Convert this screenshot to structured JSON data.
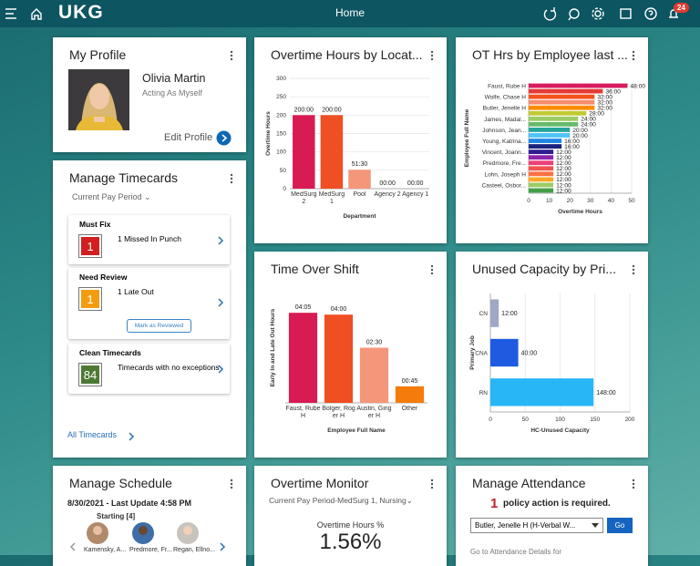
{
  "header": {
    "logo": "UKG",
    "title": "Home",
    "notifications": 24
  },
  "my_profile": {
    "title": "My Profile",
    "name": "Olivia Martin",
    "subtitle": "Acting As Myself",
    "link": "Edit Profile"
  },
  "manage_timecards": {
    "title": "Manage Timecards",
    "period": "Current Pay Period",
    "must_fix": {
      "label": "Must Fix",
      "count": 1,
      "text": "1 Missed In Punch"
    },
    "need_review": {
      "label": "Need Review",
      "count": 1,
      "text": "1 Late Out",
      "button": "Mark as Reviewed"
    },
    "clean": {
      "label": "Clean Timecards",
      "count": 84,
      "text": "Timecards with no exceptions"
    },
    "link": "All Timecards"
  },
  "overtime_by_location": {
    "type": "bar",
    "title": "Overtime Hours by Locat...",
    "categories": [
      "MedSurg 2",
      "MedSurg 1",
      "Pool",
      "Agency 2",
      "Agency 1"
    ],
    "values": [
      200,
      200,
      51.5,
      0,
      0
    ],
    "value_labels": [
      "200:00",
      "200:00",
      "51:30",
      "00:00",
      "00:00"
    ],
    "colors": [
      "#d81b52",
      "#f04e23",
      "#f4967a",
      "#f7a04a",
      "#f7a04a"
    ],
    "ylim": [
      0,
      300
    ],
    "yticks": [
      0,
      50,
      100,
      150,
      200,
      250,
      300
    ],
    "ylabel": "Overtime Hours",
    "xlabel": "Department",
    "grid": true
  },
  "ot_by_employee": {
    "type": "hbar",
    "title": "OT Hrs by Employee last ...",
    "categories": [
      "Faust, Rube H",
      null,
      "Wolfe, Chase H",
      null,
      "Butler, Jenelle H",
      null,
      "James, Madal...",
      null,
      "Johnson, Jean...",
      null,
      "Young, Katrina...",
      null,
      "Vincent, Joann...",
      null,
      "Predmore, Fre...",
      null,
      "Lohn, Joseph H",
      null,
      "Casteel, Osbor...",
      null
    ],
    "values": [
      48,
      36,
      32,
      32,
      32,
      28,
      24,
      24,
      20,
      20,
      16,
      16,
      12,
      12,
      12,
      12,
      12,
      12,
      12,
      12
    ],
    "value_labels": [
      "48:00",
      "36:00",
      "32:00",
      "32:00",
      "32:00",
      "28:00",
      "24:00",
      "24:00",
      "20:00",
      "20:00",
      "16:00",
      "16:00",
      "12:00",
      "12:00",
      "12:00",
      "12:00",
      "12:00",
      "12:00",
      "12:00",
      "12:00"
    ],
    "colors": [
      "#d81b60",
      "#e53935",
      "#f4511e",
      "#f78c6c",
      "#fb8c00",
      "#c0ca33",
      "#9ccc65",
      "#66bb6a",
      "#26a69a",
      "#4fc3f7",
      "#1e88e5",
      "#1a237e",
      "#311b92",
      "#8e24aa",
      "#ec407a",
      "#ef5350",
      "#ff7043",
      "#ffa726",
      "#9ccc65",
      "#43a047"
    ],
    "xlim": [
      0,
      50
    ],
    "xticks": [
      0,
      10,
      20,
      30,
      40,
      50
    ],
    "xlabel": "Overtime Hours",
    "ylabel": "Employee Full Name",
    "grid": true
  },
  "time_over_shift": {
    "type": "bar",
    "title": "Time Over Shift",
    "categories": [
      "Faust, Rube H",
      "Bolger, Roger H",
      "Austin, Ginger H",
      "Other"
    ],
    "values": [
      4.0833,
      4,
      2.5,
      0.75
    ],
    "value_labels": [
      "04:05",
      "04:00",
      "02:30",
      "00:45"
    ],
    "colors": [
      "#d81b52",
      "#f04e23",
      "#f4967a",
      "#f57c0a"
    ],
    "ylim": [
      0,
      5
    ],
    "ylabel": "Early In and Late Out Hours",
    "xlabel": "Employee Full Name"
  },
  "unused_capacity": {
    "type": "hbar",
    "title": "Unused Capacity by Pri...",
    "categories": [
      "CN",
      "CNA",
      "RN"
    ],
    "values": [
      12,
      40,
      148
    ],
    "value_labels": [
      "12:00",
      "40:00",
      "148:00"
    ],
    "colors": [
      "#9fa8c6",
      "#1e5be0",
      "#29b6f6"
    ],
    "xlim": [
      0,
      200
    ],
    "xticks": [
      0,
      50,
      100,
      150,
      200
    ],
    "xlabel": "HC-Unused Capacity",
    "ylabel": "Primary Job",
    "grid": true
  },
  "manage_schedule": {
    "title": "Manage Schedule",
    "update": "8/30/2021 - Last Update 4:58 PM",
    "group": "Starting [4]",
    "people": [
      "Kamensky, A...",
      "Predmore, Fr...",
      "Regan, Ellno..."
    ]
  },
  "overtime_monitor": {
    "title": "Overtime Monitor",
    "filter": "Current Pay Period-MedSurg 1, Nursing",
    "metric_label": "Overtime Hours %",
    "metric": "1.56%"
  },
  "manage_attendance": {
    "title": "Manage Attendance",
    "count": 1,
    "message": "policy action is required.",
    "select": "Butler, Jenelle H (H-Verbal W...",
    "button": "Go",
    "link": "Go to Attendance Details for"
  }
}
